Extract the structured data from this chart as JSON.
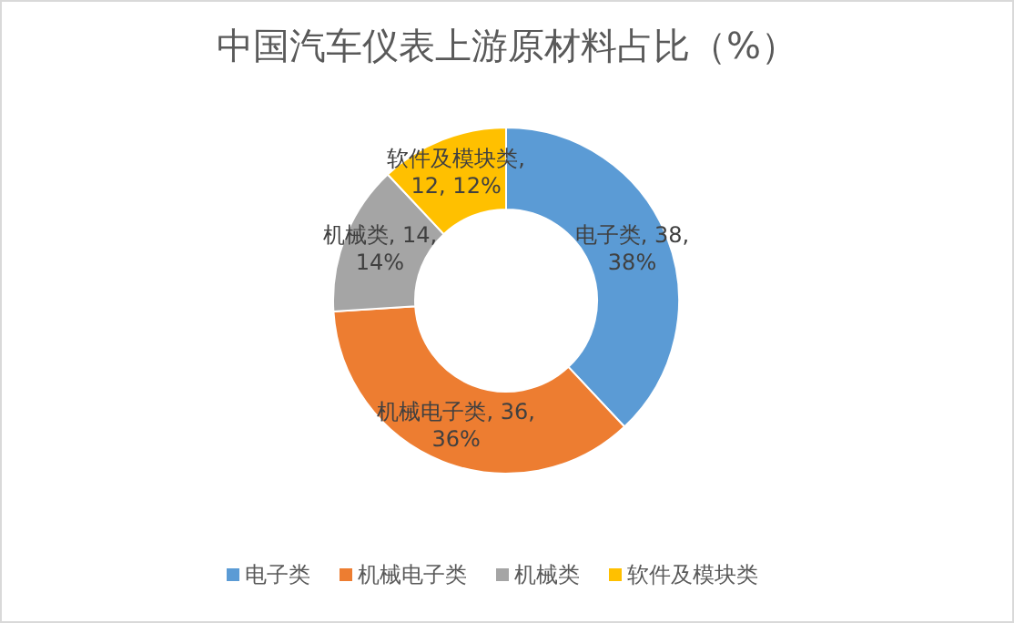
{
  "chart_data": {
    "type": "donut",
    "title": "中国汽车仪表上游原材料占比（%）",
    "categories": [
      "电子类",
      "机械电子类",
      "机械类",
      "软件及模块类"
    ],
    "values": [
      38,
      36,
      14,
      12
    ],
    "colors": [
      "#5b9bd5",
      "#ed7d31",
      "#a5a5a5",
      "#ffc000"
    ],
    "value_labels": [
      "电子类, 38, 38%",
      "机械电子类, 36, 36%",
      "机械类, 14, 14%",
      "软件及模块类, 12, 12%"
    ],
    "legend": "bottom"
  }
}
